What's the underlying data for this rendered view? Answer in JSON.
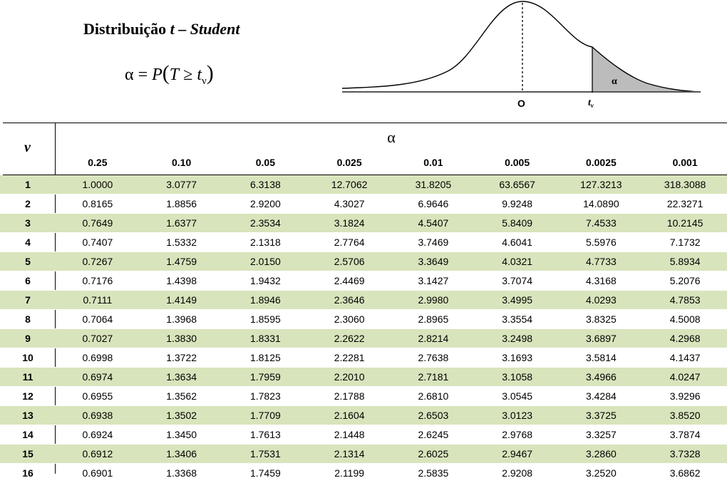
{
  "header": {
    "title_prefix": "Distribuição ",
    "title_t": "t",
    "title_dash": " – ",
    "title_student": "Student",
    "formula_alpha": "α",
    "formula_eq": " = ",
    "formula_P": "P",
    "formula_open": "(",
    "formula_T": "T",
    "formula_ge": " ≥ ",
    "formula_t": "t",
    "formula_nu": "ν",
    "formula_close": ")"
  },
  "figure": {
    "origin_label": "O",
    "alpha_label": "α",
    "t_label": "t",
    "nu_label": "ν"
  },
  "table": {
    "row_header": "ν",
    "alpha_header": "α",
    "columns": [
      "0.25",
      "0.10",
      "0.05",
      "0.025",
      "0.01",
      "0.005",
      "0.0025",
      "0.001"
    ],
    "rows": [
      {
        "nu": "1",
        "values": [
          "1.0000",
          "3.0777",
          "6.3138",
          "12.7062",
          "31.8205",
          "63.6567",
          "127.3213",
          "318.3088"
        ]
      },
      {
        "nu": "2",
        "values": [
          "0.8165",
          "1.8856",
          "2.9200",
          "4.3027",
          "6.9646",
          "9.9248",
          "14.0890",
          "22.3271"
        ]
      },
      {
        "nu": "3",
        "values": [
          "0.7649",
          "1.6377",
          "2.3534",
          "3.1824",
          "4.5407",
          "5.8409",
          "7.4533",
          "10.2145"
        ]
      },
      {
        "nu": "4",
        "values": [
          "0.7407",
          "1.5332",
          "2.1318",
          "2.7764",
          "3.7469",
          "4.6041",
          "5.5976",
          "7.1732"
        ]
      },
      {
        "nu": "5",
        "values": [
          "0.7267",
          "1.4759",
          "2.0150",
          "2.5706",
          "3.3649",
          "4.0321",
          "4.7733",
          "5.8934"
        ]
      },
      {
        "nu": "6",
        "values": [
          "0.7176",
          "1.4398",
          "1.9432",
          "2.4469",
          "3.1427",
          "3.7074",
          "4.3168",
          "5.2076"
        ]
      },
      {
        "nu": "7",
        "values": [
          "0.7111",
          "1.4149",
          "1.8946",
          "2.3646",
          "2.9980",
          "3.4995",
          "4.0293",
          "4.7853"
        ]
      },
      {
        "nu": "8",
        "values": [
          "0.7064",
          "1.3968",
          "1.8595",
          "2.3060",
          "2.8965",
          "3.3554",
          "3.8325",
          "4.5008"
        ]
      },
      {
        "nu": "9",
        "values": [
          "0.7027",
          "1.3830",
          "1.8331",
          "2.2622",
          "2.8214",
          "3.2498",
          "3.6897",
          "4.2968"
        ]
      },
      {
        "nu": "10",
        "values": [
          "0.6998",
          "1.3722",
          "1.8125",
          "2.2281",
          "2.7638",
          "3.1693",
          "3.5814",
          "4.1437"
        ]
      },
      {
        "nu": "11",
        "values": [
          "0.6974",
          "1.3634",
          "1.7959",
          "2.2010",
          "2.7181",
          "3.1058",
          "3.4966",
          "4.0247"
        ]
      },
      {
        "nu": "12",
        "values": [
          "0.6955",
          "1.3562",
          "1.7823",
          "2.1788",
          "2.6810",
          "3.0545",
          "3.4284",
          "3.9296"
        ]
      },
      {
        "nu": "13",
        "values": [
          "0.6938",
          "1.3502",
          "1.7709",
          "2.1604",
          "2.6503",
          "3.0123",
          "3.3725",
          "3.8520"
        ]
      },
      {
        "nu": "14",
        "values": [
          "0.6924",
          "1.3450",
          "1.7613",
          "2.1448",
          "2.6245",
          "2.9768",
          "3.3257",
          "3.7874"
        ]
      },
      {
        "nu": "15",
        "values": [
          "0.6912",
          "1.3406",
          "1.7531",
          "2.1314",
          "2.6025",
          "2.9467",
          "3.2860",
          "3.7328"
        ]
      },
      {
        "nu": "16",
        "values": [
          "0.6901",
          "1.3368",
          "1.7459",
          "2.1199",
          "2.5835",
          "2.9208",
          "3.2520",
          "3.6862"
        ]
      }
    ]
  }
}
